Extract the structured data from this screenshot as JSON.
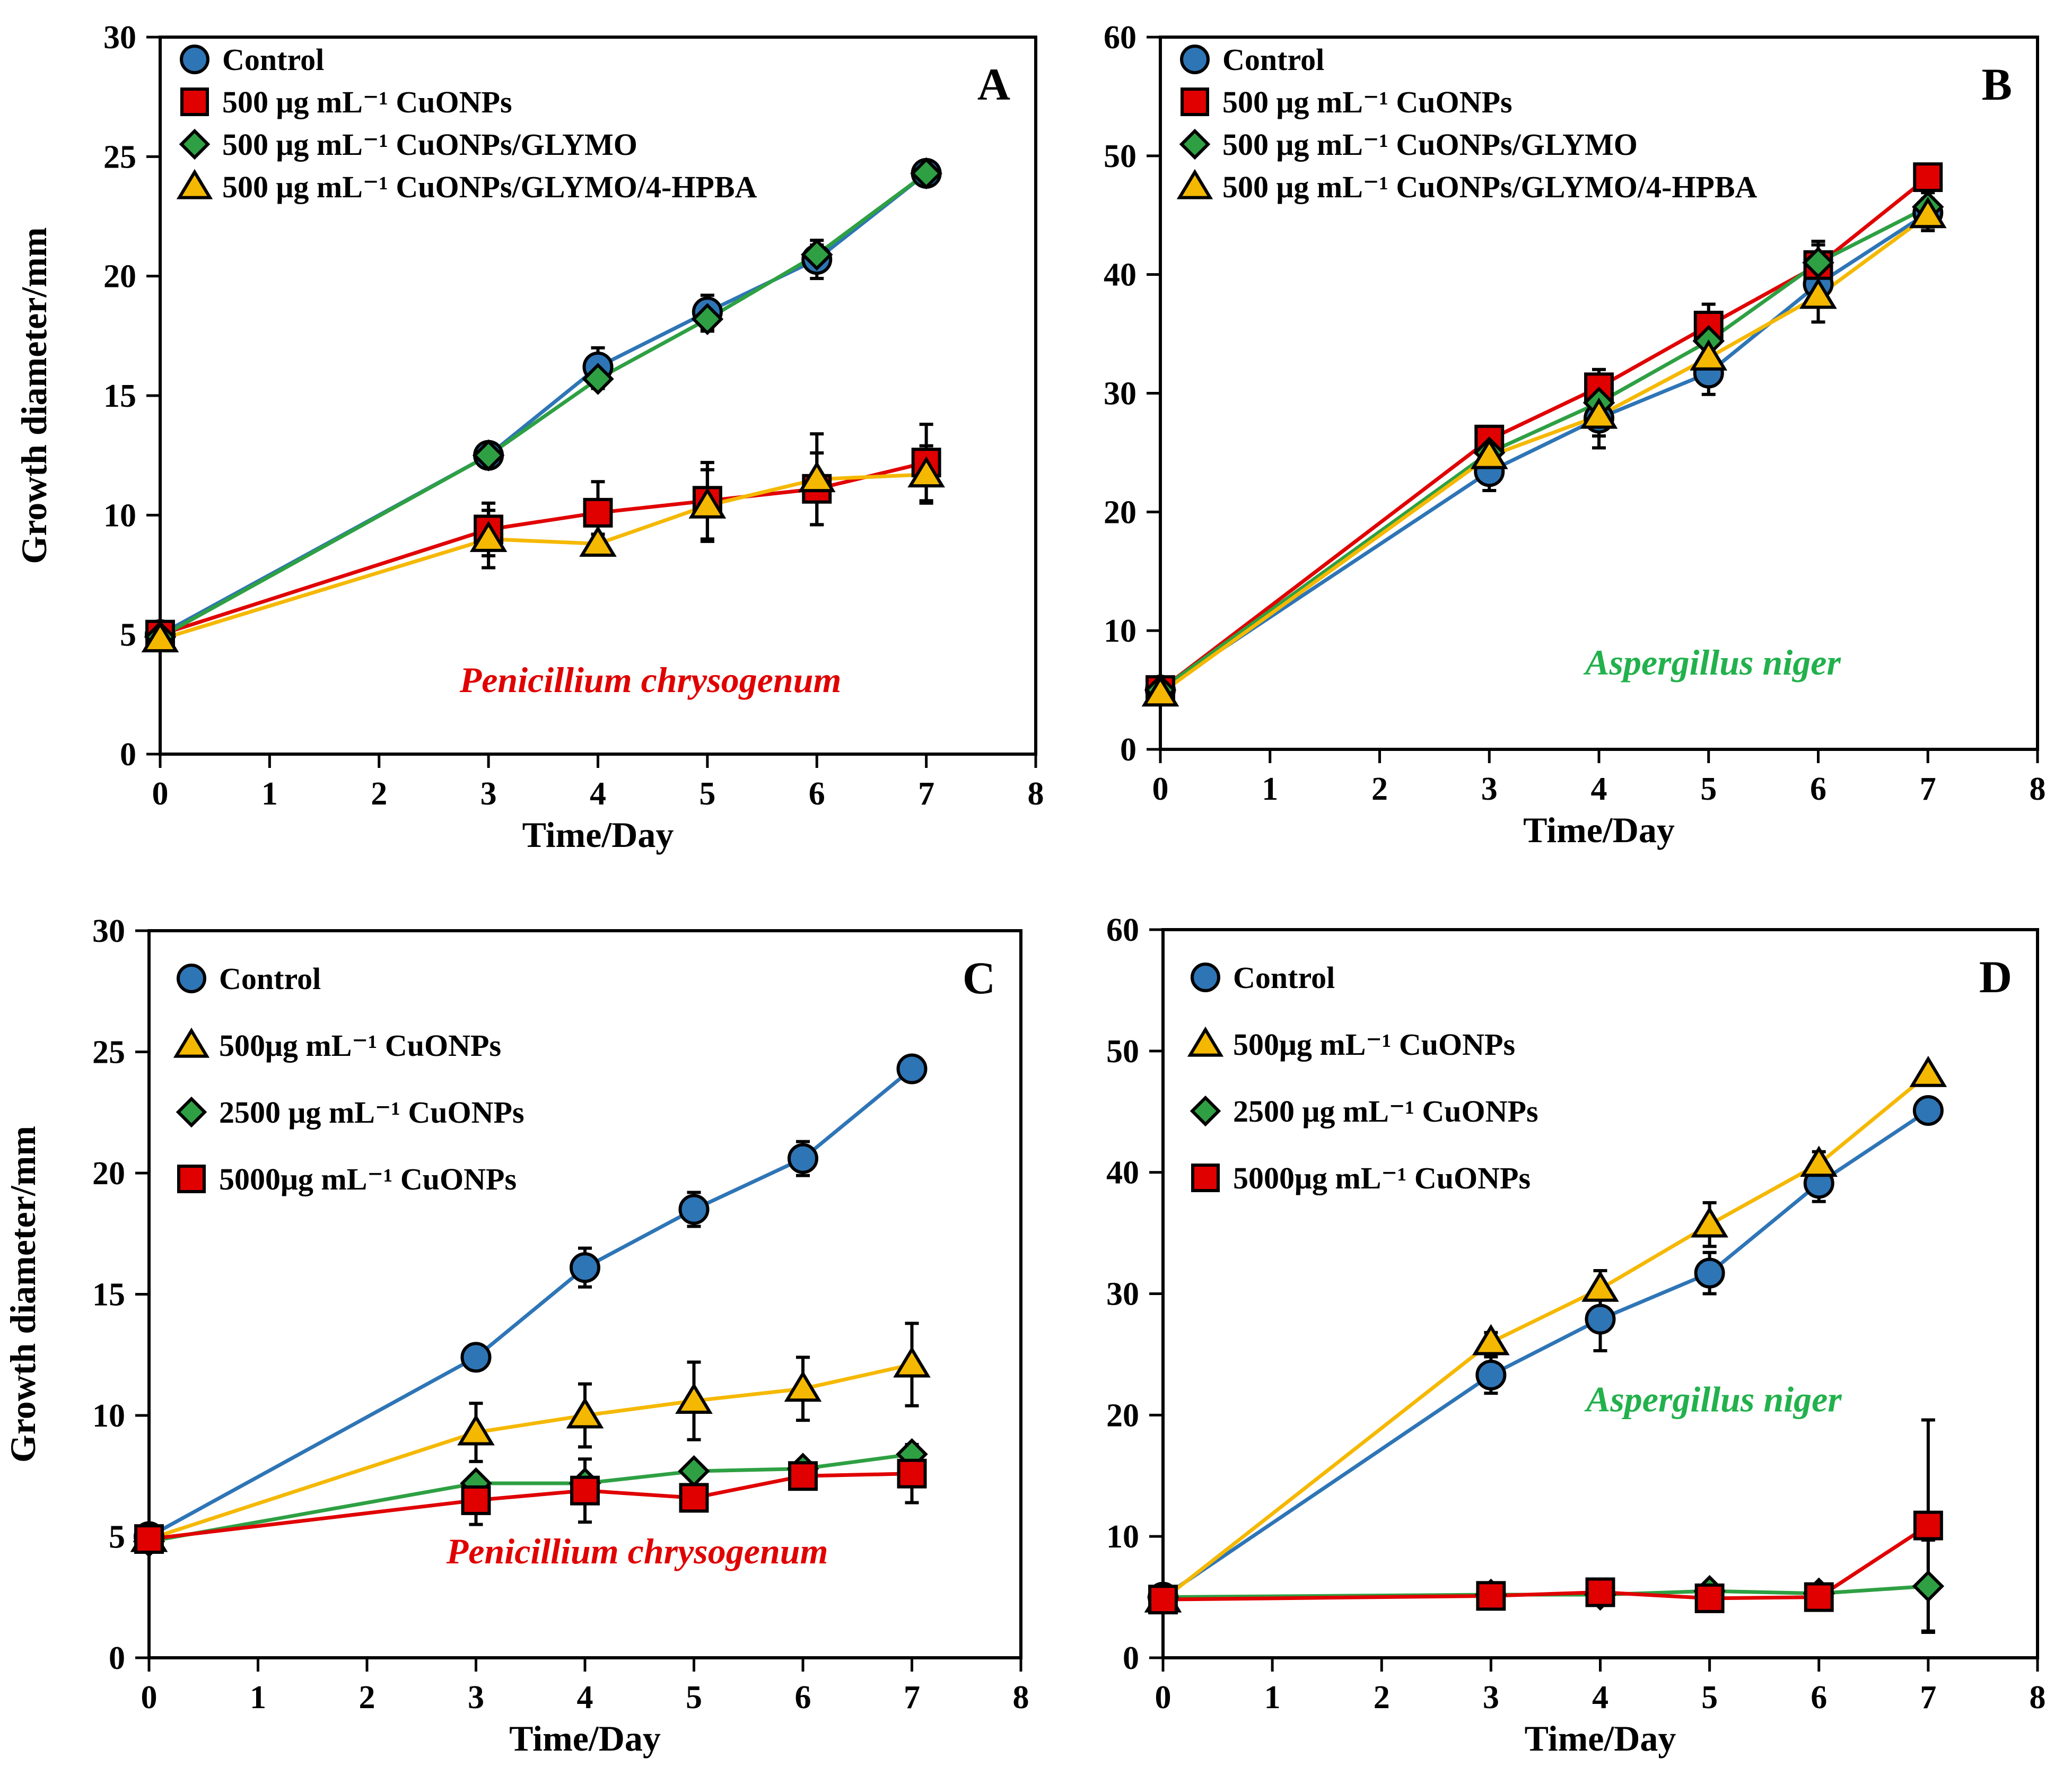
{
  "colors": {
    "control": "#2E75B6",
    "red": "#E00000",
    "green": "#2EA043",
    "yellow": "#F5B800",
    "marker_stroke": "#000000",
    "species_red": "#E00000",
    "species_green": "#22B14C"
  },
  "chart_data": [
    {
      "type": "line",
      "panel_label": "A",
      "xlabel": "Time/Day",
      "ylabel": "Growth diameter/mm",
      "xlim": [
        0,
        8
      ],
      "ylim": [
        0,
        30
      ],
      "xticks": [
        "0",
        "1",
        "2",
        "3",
        "4",
        "5",
        "6",
        "7",
        "8"
      ],
      "yticks": [
        "0",
        "5",
        "10",
        "15",
        "20",
        "25",
        "30"
      ],
      "annotation": "Penicillium chrysogenum",
      "annotation_color": "species_red",
      "legend_position": "top-left",
      "x": [
        0,
        3,
        4,
        5,
        6,
        7
      ],
      "series": [
        {
          "name": "Control",
          "marker": "circle",
          "color": "control",
          "values": [
            5.0,
            12.5,
            16.2,
            18.5,
            20.7,
            24.3
          ],
          "errors": [
            0.3,
            0.3,
            0.8,
            0.7,
            0.8,
            0.3
          ]
        },
        {
          "name": "500 μg mL⁻¹ CuONPs",
          "marker": "square",
          "color": "red",
          "values": [
            5.0,
            9.4,
            10.1,
            10.6,
            11.1,
            12.2
          ],
          "errors": [
            0.3,
            1.1,
            1.3,
            1.6,
            1.5,
            1.6
          ]
        },
        {
          "name": "500 μg mL⁻¹ CuONPs/GLYMO",
          "marker": "diamond",
          "color": "green",
          "values": [
            4.9,
            12.5,
            15.7,
            18.2,
            20.9,
            24.3
          ],
          "errors": [
            0.2,
            0.3,
            0.4,
            0.5,
            0.4,
            0.3
          ]
        },
        {
          "name": "500 μg mL⁻¹ CuONPs/GLYMO/4-HPBA",
          "marker": "triangle",
          "color": "yellow",
          "values": [
            4.8,
            9.0,
            8.8,
            10.4,
            11.5,
            11.7
          ],
          "errors": [
            0.3,
            1.2,
            0.4,
            1.5,
            1.9,
            1.2
          ]
        }
      ]
    },
    {
      "type": "line",
      "panel_label": "B",
      "xlabel": "Time/Day",
      "ylabel": "",
      "xlim": [
        0,
        8
      ],
      "ylim": [
        0,
        60
      ],
      "xticks": [
        "0",
        "1",
        "2",
        "3",
        "4",
        "5",
        "6",
        "7",
        "8"
      ],
      "yticks": [
        "0",
        "10",
        "20",
        "30",
        "40",
        "50",
        "60"
      ],
      "annotation": "Aspergillus niger",
      "annotation_color": "species_green",
      "legend_position": "top-left",
      "x": [
        0,
        3,
        4,
        5,
        6,
        7
      ],
      "series": [
        {
          "name": "Control",
          "marker": "circle",
          "color": "control",
          "values": [
            5.0,
            23.4,
            27.9,
            31.7,
            39.2,
            45.2
          ],
          "errors": [
            0.4,
            1.6,
            1.5,
            1.8,
            1.7,
            1.2
          ]
        },
        {
          "name": "500 μg mL⁻¹ CuONPs",
          "marker": "square",
          "color": "red",
          "values": [
            5.0,
            26.1,
            30.5,
            35.7,
            40.8,
            48.2
          ],
          "errors": [
            0.4,
            0.8,
            1.5,
            1.8,
            2.0,
            0.6
          ]
        },
        {
          "name": "500 μg mL⁻¹ CuONPs/GLYMO",
          "marker": "diamond",
          "color": "green",
          "values": [
            5.0,
            25.0,
            29.2,
            34.4,
            41.0,
            45.7
          ],
          "errors": [
            0.3,
            0.7,
            1.2,
            1.5,
            1.5,
            1.2
          ]
        },
        {
          "name": "500 μg mL⁻¹ CuONPs/GLYMO/4-HPBA",
          "marker": "triangle",
          "color": "yellow",
          "values": [
            4.7,
            24.7,
            28.1,
            33.0,
            38.2,
            45.0
          ],
          "errors": [
            0.4,
            1.2,
            2.7,
            2.2,
            2.2,
            1.3
          ]
        }
      ]
    },
    {
      "type": "line",
      "panel_label": "C",
      "xlabel": "Time/Day",
      "ylabel": "Growth diameter/mm",
      "xlim": [
        0,
        8
      ],
      "ylim": [
        0,
        30
      ],
      "xticks": [
        "0",
        "1",
        "2",
        "3",
        "4",
        "5",
        "6",
        "7",
        "8"
      ],
      "yticks": [
        "0",
        "5",
        "10",
        "15",
        "20",
        "25",
        "30"
      ],
      "annotation": "Penicillium chrysogenum",
      "annotation_color": "species_red",
      "legend_position": "top-left",
      "x": [
        0,
        3,
        4,
        5,
        6,
        7
      ],
      "series": [
        {
          "name": "Control",
          "marker": "circle",
          "color": "control",
          "values": [
            5.0,
            12.4,
            16.1,
            18.5,
            20.6,
            24.3
          ],
          "errors": [
            0.2,
            0.2,
            0.8,
            0.7,
            0.7,
            0.2
          ]
        },
        {
          "name": "500μg mL⁻¹ CuONPs",
          "marker": "triangle",
          "color": "yellow",
          "values": [
            4.9,
            9.3,
            10.0,
            10.6,
            11.1,
            12.1
          ],
          "errors": [
            0.2,
            1.2,
            1.3,
            1.6,
            1.3,
            1.7
          ]
        },
        {
          "name": "2500 μg mL⁻¹ CuONPs",
          "marker": "diamond",
          "color": "green",
          "values": [
            4.8,
            7.2,
            7.2,
            7.7,
            7.8,
            8.4
          ],
          "errors": [
            0.2,
            0.3,
            0.3,
            0.3,
            0.3,
            0.3
          ]
        },
        {
          "name": "5000μg mL⁻¹ CuONPs",
          "marker": "square",
          "color": "red",
          "values": [
            4.9,
            6.5,
            6.9,
            6.6,
            7.5,
            7.6
          ],
          "errors": [
            0.2,
            1.0,
            1.3,
            0.4,
            0.4,
            1.2
          ]
        }
      ]
    },
    {
      "type": "line",
      "panel_label": "D",
      "xlabel": "Time/Day",
      "ylabel": "",
      "xlim": [
        0,
        8
      ],
      "ylim": [
        0,
        60
      ],
      "xticks": [
        "0",
        "1",
        "2",
        "3",
        "4",
        "5",
        "6",
        "7",
        "8"
      ],
      "yticks": [
        "0",
        "10",
        "20",
        "30",
        "40",
        "50",
        "60"
      ],
      "annotation": "Aspergillus niger",
      "annotation_color": "species_green",
      "legend_position": "top-left",
      "x": [
        0,
        3,
        4,
        5,
        6,
        7
      ],
      "series": [
        {
          "name": "Control",
          "marker": "circle",
          "color": "control",
          "values": [
            5.0,
            23.3,
            27.9,
            31.7,
            39.1,
            45.1
          ],
          "errors": [
            0.3,
            1.5,
            2.6,
            1.7,
            1.5,
            0.3
          ]
        },
        {
          "name": "500μg mL⁻¹ CuONPs",
          "marker": "triangle",
          "color": "yellow",
          "values": [
            4.8,
            26.0,
            30.4,
            35.7,
            40.7,
            48.1
          ],
          "errors": [
            0.3,
            0.8,
            1.5,
            1.8,
            1.0,
            0.3
          ]
        },
        {
          "name": "2500 μg mL⁻¹ CuONPs",
          "marker": "diamond",
          "color": "green",
          "values": [
            5.0,
            5.2,
            5.2,
            5.5,
            5.3,
            5.9
          ],
          "errors": [
            0.2,
            0.2,
            0.2,
            0.2,
            0.2,
            3.8
          ]
        },
        {
          "name": "5000μg mL⁻¹ CuONPs",
          "marker": "square",
          "color": "red",
          "values": [
            4.8,
            5.1,
            5.4,
            4.9,
            5.0,
            10.9
          ],
          "errors": [
            0.2,
            0.2,
            0.2,
            0.2,
            0.2,
            8.7
          ]
        }
      ]
    }
  ]
}
